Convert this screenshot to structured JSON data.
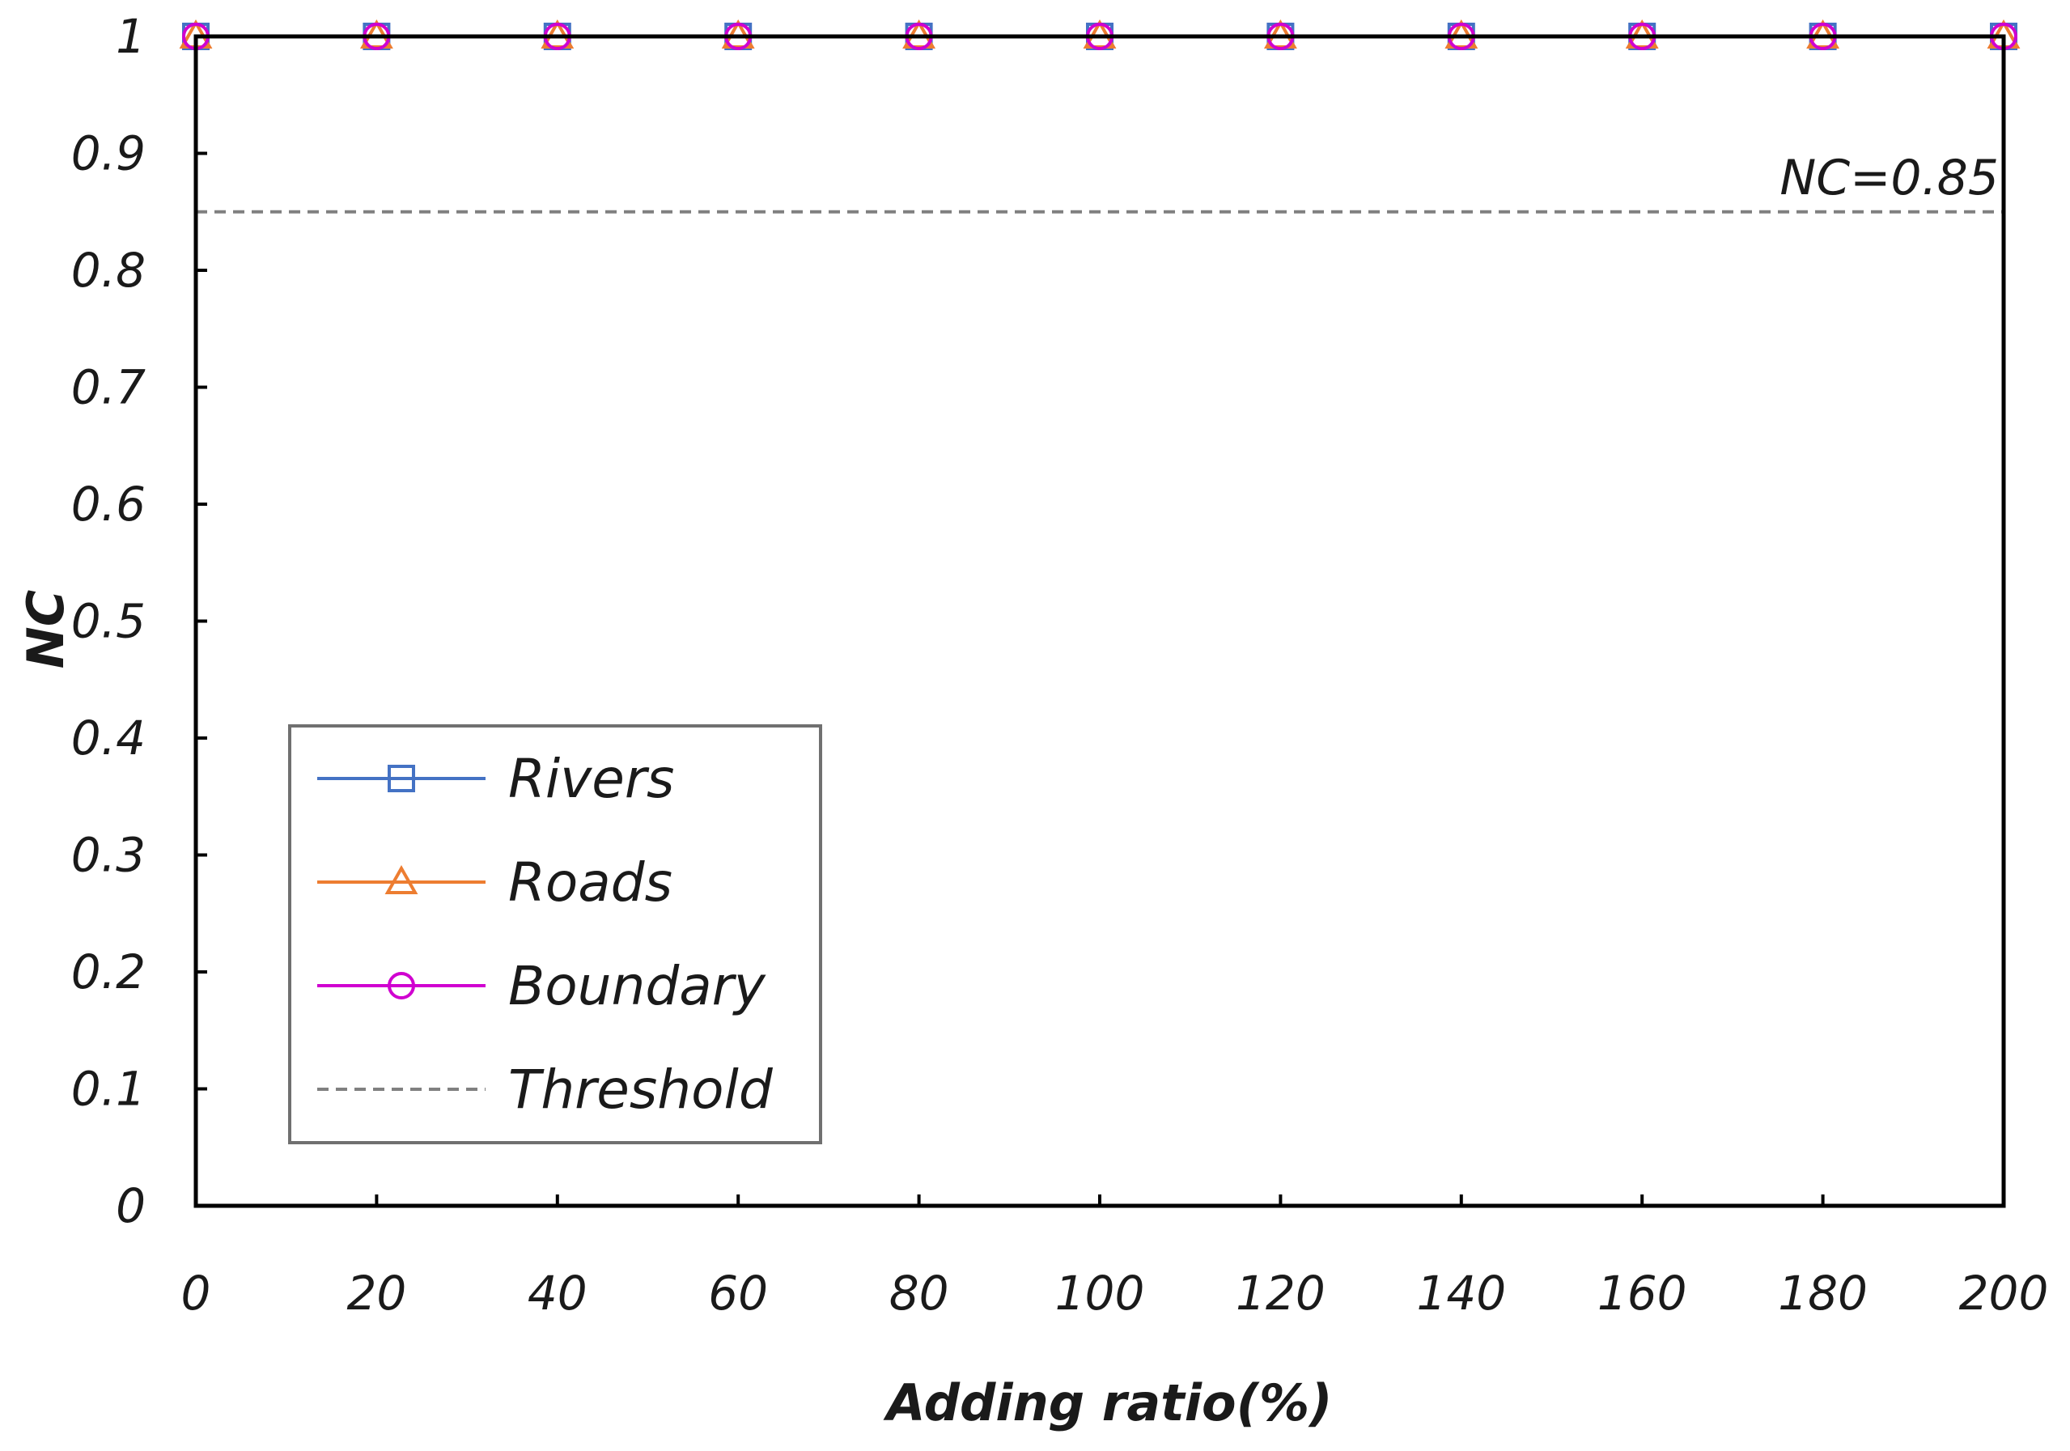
{
  "chart_data": {
    "type": "line",
    "title": "",
    "xlabel": "Adding ratio(%)",
    "ylabel": "NC",
    "x": [
      0,
      20,
      40,
      60,
      80,
      100,
      120,
      140,
      160,
      180,
      200
    ],
    "xticks": [
      "0",
      "20",
      "40",
      "60",
      "80",
      "100",
      "120",
      "140",
      "160",
      "180",
      "200"
    ],
    "yticks": [
      "0",
      "0.1",
      "0.2",
      "0.3",
      "0.4",
      "0.5",
      "0.6",
      "0.7",
      "0.8",
      "0.9",
      "1"
    ],
    "xlim": [
      0,
      200
    ],
    "ylim": [
      0,
      1
    ],
    "grid": false,
    "legend_position": "bottom-left",
    "series": [
      {
        "name": "Rivers",
        "marker": "square",
        "color": "#4472C4",
        "values": [
          1,
          1,
          1,
          1,
          1,
          1,
          1,
          1,
          1,
          1,
          1
        ]
      },
      {
        "name": "Roads",
        "marker": "triangle",
        "color": "#ED7D31",
        "values": [
          1,
          1,
          1,
          1,
          1,
          1,
          1,
          1,
          1,
          1,
          1
        ]
      },
      {
        "name": "Boundary",
        "marker": "circle",
        "color": "#D000D0",
        "values": [
          1,
          1,
          1,
          1,
          1,
          1,
          1,
          1,
          1,
          1,
          1
        ]
      }
    ],
    "threshold": {
      "name": "Threshold",
      "value": 0.85,
      "label": "NC=0.85",
      "color": "#808080"
    }
  }
}
